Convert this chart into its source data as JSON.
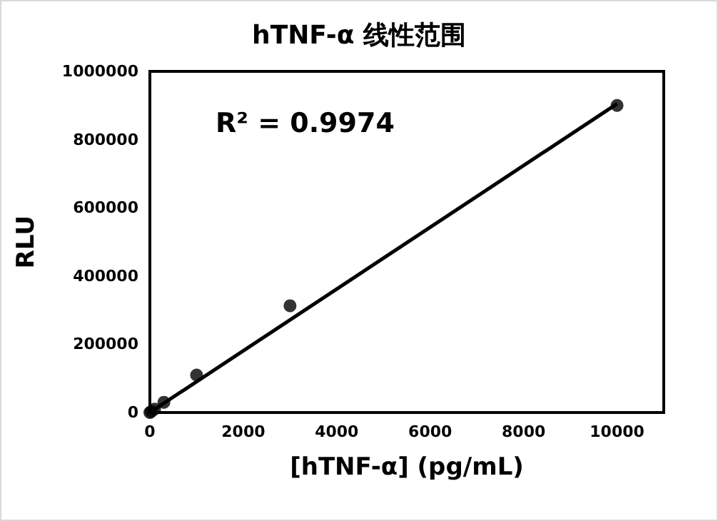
{
  "chart_data": {
    "type": "scatter",
    "title": "hTNF-α 线性范围",
    "xlabel": "[hTNF-α] (pg/mL)",
    "ylabel": "RLU",
    "annotations": [
      "R² = 0.9974"
    ],
    "series": [
      {
        "color": "#000000",
        "marker": "circle",
        "x": [
          0,
          30,
          100,
          300,
          1000,
          3000,
          10000
        ],
        "values": [
          0,
          3000,
          10000,
          30000,
          110000,
          313000,
          900000
        ]
      },
      {
        "type": "line",
        "color": "#000000",
        "marker": "none",
        "x": [
          0,
          10000
        ],
        "values": [
          0,
          905000
        ]
      }
    ],
    "xlim": [
      0,
      11000
    ],
    "xticks": [
      0,
      2000,
      4000,
      6000,
      8000,
      10000
    ],
    "ylim": [
      0,
      1000000
    ],
    "yticks": [
      0,
      200000,
      400000,
      600000,
      800000,
      1000000
    ],
    "grid": false
  }
}
